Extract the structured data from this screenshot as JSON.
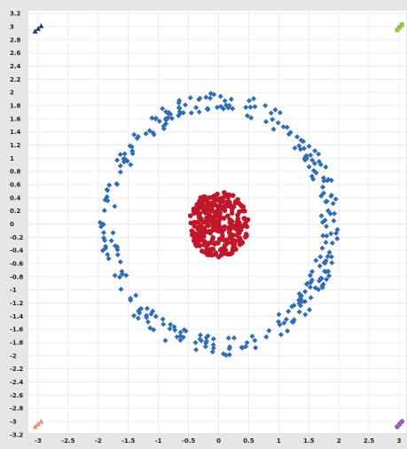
{
  "chart_data": {
    "type": "scatter",
    "title": "",
    "xlabel": "",
    "ylabel": "",
    "xlim": [
      -3.2,
      3.2
    ],
    "ylim": [
      -3.2,
      3.2
    ],
    "grid": true,
    "x_ticks": [
      "-3",
      "-2.5",
      "-2",
      "-1.5",
      "-1",
      "-0.5",
      "0",
      "0.5",
      "1",
      "1.5",
      "2",
      "2.5",
      "3"
    ],
    "y_ticks": [
      "3.2",
      "3",
      "2.8",
      "2.6",
      "2.4",
      "2.2",
      "2",
      "1.8",
      "1.6",
      "1.4",
      "1.2",
      "1",
      "0.8",
      "0.6",
      "0.4",
      "0.2",
      "0",
      "-0.2",
      "-0.4",
      "-0.6",
      "-0.8",
      "-1",
      "-1.2",
      "-1.4",
      "-1.6",
      "-1.8",
      "-2",
      "-2.2",
      "-2.4",
      "-2.6",
      "-2.8",
      "-3",
      "-3.2"
    ],
    "series": [
      {
        "marker": "diamond",
        "color": "#2f6db5",
        "shape": "ring",
        "center": [
          0,
          0
        ],
        "inner_radius": 1.7,
        "outer_radius": 2.0,
        "approx_points": 300
      },
      {
        "marker": "circle",
        "color": "#c0182a",
        "shape": "disk",
        "center": [
          0,
          0
        ],
        "radius": 0.5,
        "approx_points": 300
      },
      {
        "marker": "triangle",
        "color": "#1f3b66",
        "points": [
          [
            -3.05,
            2.93
          ],
          [
            -3.0,
            2.97
          ],
          [
            -2.95,
            3.01
          ]
        ]
      },
      {
        "marker": "square",
        "color": "#8cc63f",
        "points": [
          [
            2.97,
            2.95
          ],
          [
            3.01,
            2.99
          ],
          [
            3.05,
            3.03
          ]
        ]
      },
      {
        "marker": "triangle",
        "color": "#f08a6b",
        "points": [
          [
            -3.05,
            -3.08
          ],
          [
            -3.0,
            -3.04
          ],
          [
            -2.95,
            -3.0
          ]
        ]
      },
      {
        "marker": "circle",
        "color": "#9b59b6",
        "points": [
          [
            2.97,
            -3.08
          ],
          [
            3.01,
            -3.04
          ],
          [
            3.05,
            -3.0
          ]
        ]
      }
    ]
  }
}
